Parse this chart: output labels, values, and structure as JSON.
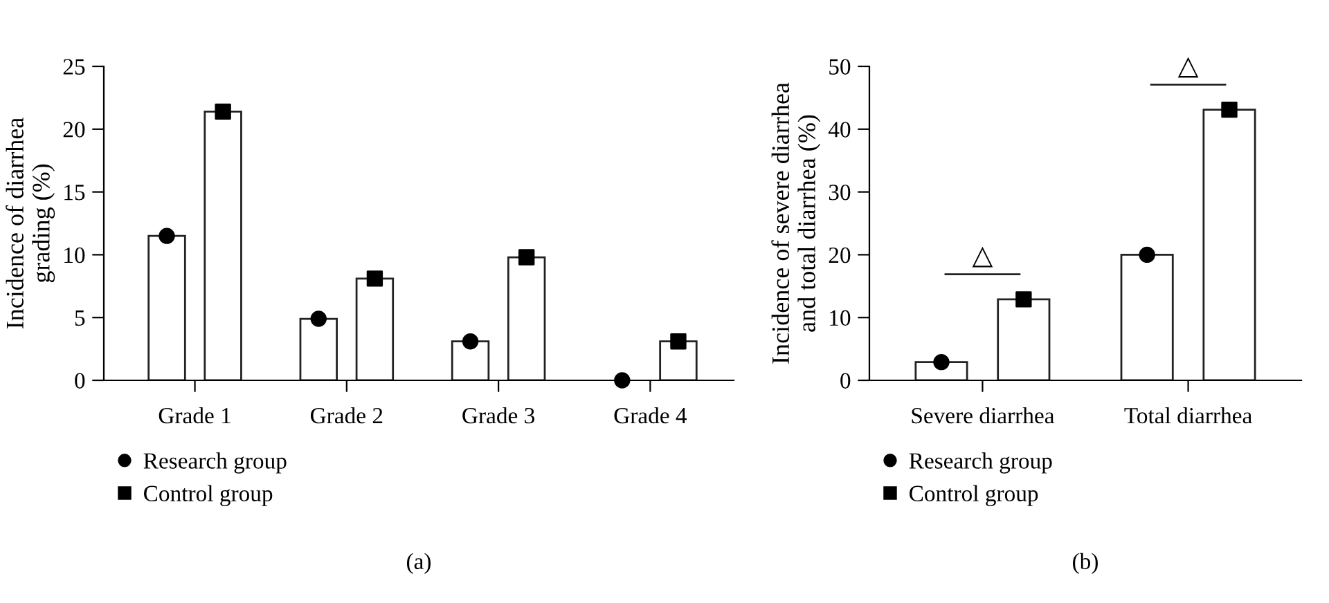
{
  "chart_data": [
    {
      "type": "bar",
      "ylabel": "Incidence of diarrhea\ngrading (%)",
      "categories": [
        "Grade 1",
        "Grade 2",
        "Grade 3",
        "Grade 4"
      ],
      "ylim": [
        0,
        25
      ],
      "yticks": [
        0,
        5,
        10,
        15,
        20,
        25
      ],
      "grid": false,
      "legend": "bottom",
      "annotations": [
        "(a)"
      ],
      "series": [
        {
          "color": "#ffffff",
          "values": [
            11.5,
            4.9,
            3.1,
            0
          ]
        },
        {
          "color": "#ffffff",
          "values": [
            21.4,
            8.1,
            9.8,
            3.1
          ]
        },
        {
          "type": "scatter",
          "name": "Research group",
          "color": "#000000",
          "marker": "circle",
          "x": [
            "Grade 1",
            "Grade 2",
            "Grade 3",
            "Grade 4"
          ],
          "values": [
            11.5,
            4.9,
            3.1,
            0
          ]
        },
        {
          "type": "scatter",
          "name": "Control group",
          "color": "#000000",
          "marker": "square",
          "x": [
            "Grade 1",
            "Grade 2",
            "Grade 3",
            "Grade 4"
          ],
          "values": [
            21.4,
            8.1,
            9.8,
            3.1
          ]
        }
      ]
    },
    {
      "type": "bar",
      "ylabel": "Incidence of severe diarrhea\nand total diarrhea (%)",
      "categories": [
        "Severe diarrhea",
        "Total diarrhea"
      ],
      "ylim": [
        0,
        50
      ],
      "yticks": [
        0,
        10,
        20,
        30,
        40,
        50
      ],
      "grid": false,
      "legend": "bottom",
      "annotations": [
        "△",
        "△",
        "(b)"
      ],
      "series": [
        {
          "color": "#ffffff",
          "values": [
            2.9,
            20
          ]
        },
        {
          "color": "#ffffff",
          "values": [
            12.9,
            43.1
          ]
        },
        {
          "type": "scatter",
          "name": "Research group",
          "color": "#000000",
          "marker": "circle",
          "x": [
            "Severe diarrhea",
            "Total diarrhea"
          ],
          "values": [
            2.9,
            20
          ]
        },
        {
          "type": "scatter",
          "name": "Control group",
          "color": "#000000",
          "marker": "square",
          "x": [
            "Severe diarrhea",
            "Total diarrhea"
          ],
          "values": [
            12.9,
            43.1
          ]
        }
      ]
    }
  ]
}
